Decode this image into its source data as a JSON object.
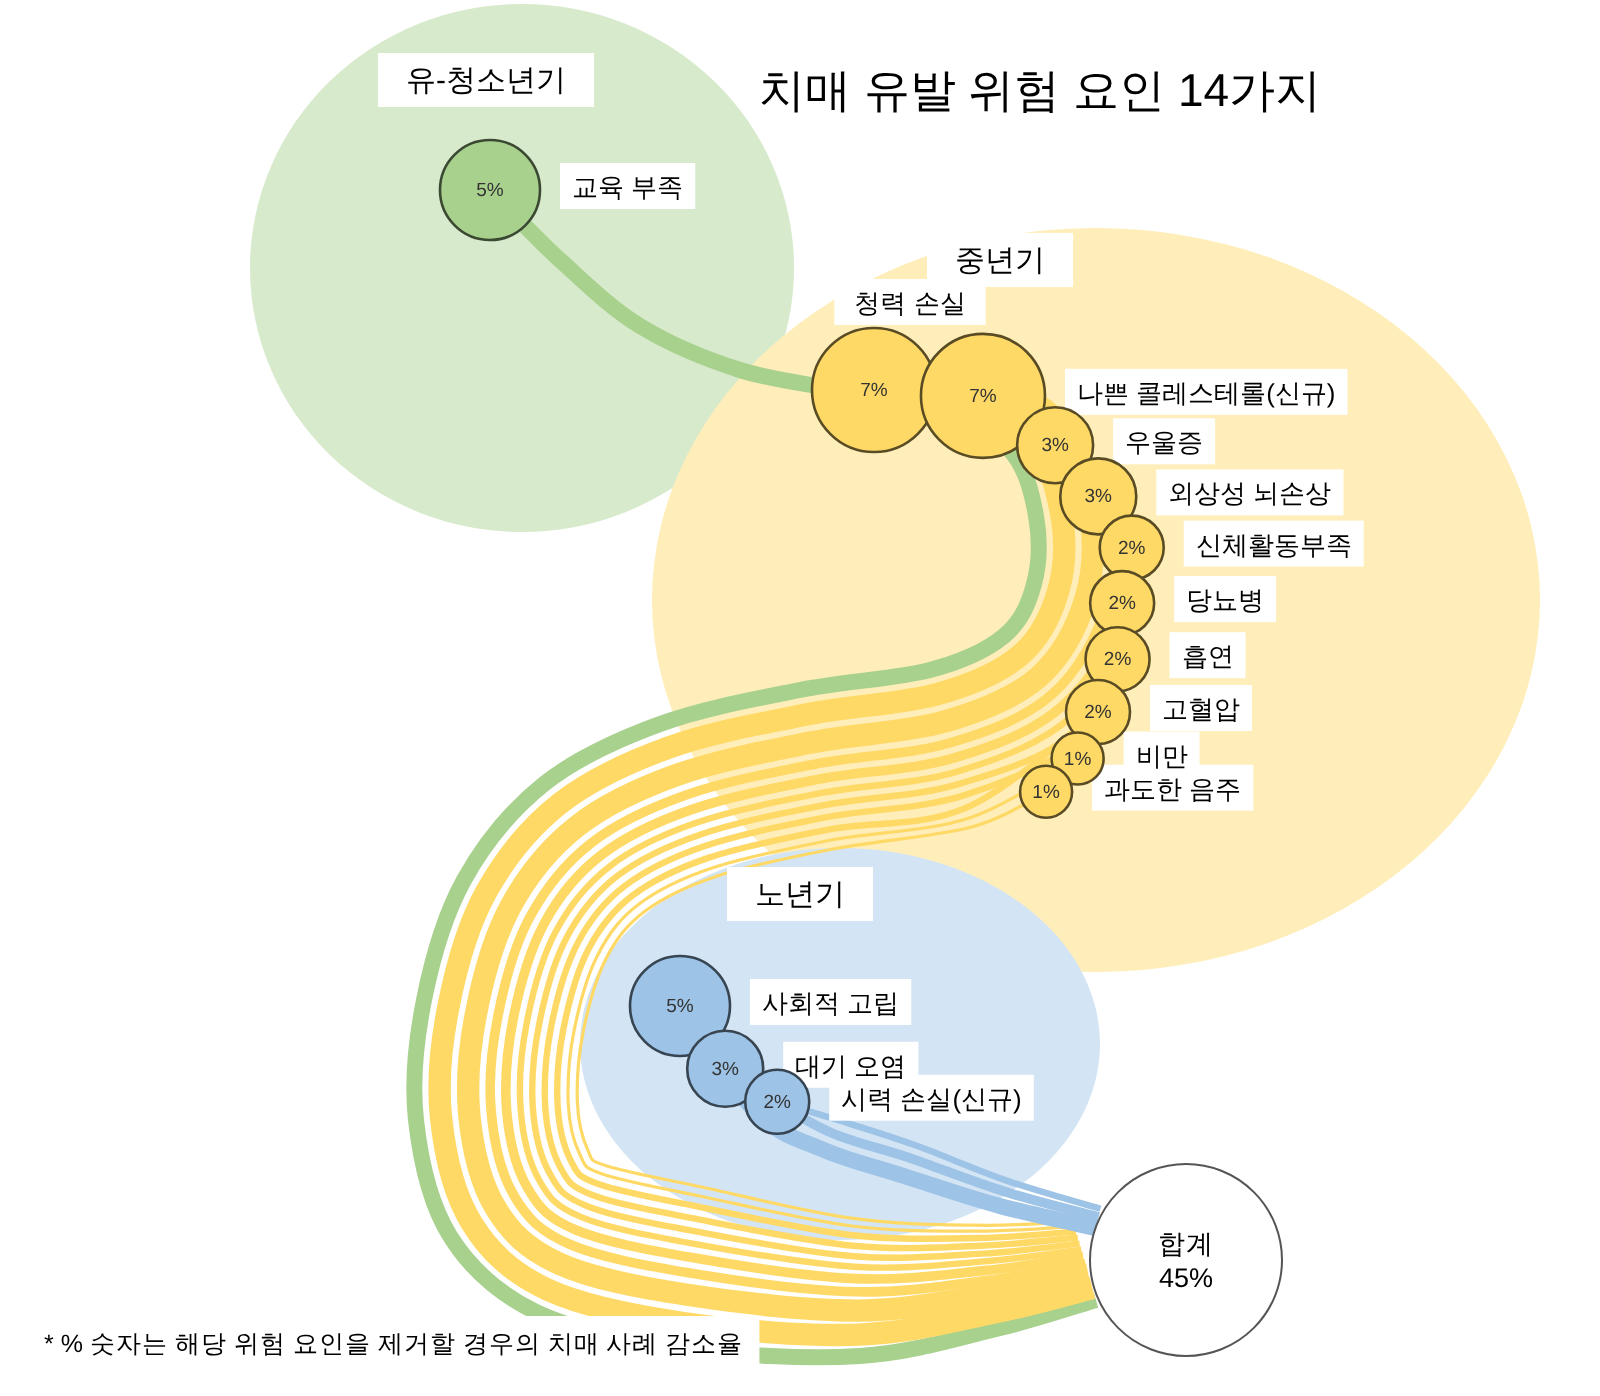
{
  "chart_data": {
    "type": "other",
    "title": "치매 유발 위험 요인 14가지",
    "categories": [
      "교육 부족",
      "청력 손실",
      "나쁜 콜레스테롤(신규)",
      "우울증",
      "외상성 뇌손상",
      "신체활동부족",
      "당뇨병",
      "흡연",
      "고혈압",
      "비만",
      "과도한 음주",
      "사회적 고립",
      "대기 오염",
      "시력 손실(신규)"
    ],
    "series": [
      {
        "name": "유-청소년기",
        "color": "#a9d18e",
        "values": [
          5,
          null,
          null,
          null,
          null,
          null,
          null,
          null,
          null,
          null,
          null,
          null,
          null,
          null
        ],
        "value_labels": [
          "5%",
          null,
          null,
          null,
          null,
          null,
          null,
          null,
          null,
          null,
          null,
          null,
          null,
          null
        ]
      },
      {
        "name": "중년기",
        "color": "#ffd966",
        "values": [
          null,
          7,
          7,
          3,
          3,
          2,
          2,
          2,
          2,
          1,
          1,
          null,
          null,
          null
        ],
        "value_labels": [
          null,
          "7%",
          "7%",
          "3%",
          "3%",
          "2%",
          "2%",
          "2%",
          "2%",
          "1%",
          "1%",
          null,
          null,
          null
        ]
      },
      {
        "name": "노년기",
        "color": "#9dc3e6",
        "values": [
          null,
          null,
          null,
          null,
          null,
          null,
          null,
          null,
          null,
          null,
          null,
          5,
          3,
          2
        ],
        "value_labels": [
          null,
          null,
          null,
          null,
          null,
          null,
          null,
          null,
          null,
          null,
          null,
          "5%",
          "3%",
          "2%"
        ]
      }
    ],
    "annotations": [
      "합계 45%",
      "* % 숫자는 해당 위험 요인을 제거할 경우의 치매 사례 감소율"
    ]
  }
}
